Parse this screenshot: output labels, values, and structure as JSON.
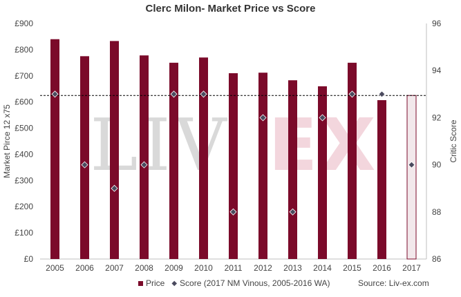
{
  "chart_data": {
    "type": "bar",
    "title": "Clerc Milon- Market Price vs Score",
    "categories": [
      "2005",
      "2006",
      "2007",
      "2008",
      "2009",
      "2010",
      "2011",
      "2012",
      "2013",
      "2014",
      "2015",
      "2016",
      "2017"
    ],
    "series": [
      {
        "name": "Price",
        "kind": "bar",
        "axis": "left",
        "color": "#7b0a2a",
        "values": [
          840,
          775,
          833,
          778,
          750,
          770,
          710,
          712,
          683,
          660,
          750,
          607,
          625
        ],
        "hollow_last": true
      },
      {
        "name": "Score (2017 NM Vinous, 2005-2016 WA)",
        "kind": "scatter",
        "axis": "right",
        "color": "#4a4a5e",
        "values": [
          93,
          90,
          89,
          90,
          93,
          93,
          88,
          92,
          88,
          92,
          93,
          93,
          90
        ]
      }
    ],
    "reference_line": {
      "value": 625,
      "axis": "left",
      "style": "dashed"
    },
    "ylabel": "Market Pirce 12 x75",
    "y2label": "Critic Score",
    "ylim": [
      0,
      900
    ],
    "y_ticks": [
      "£0",
      "£100",
      "£200",
      "£300",
      "£400",
      "£500",
      "£600",
      "£700",
      "£800",
      "£900"
    ],
    "y2lim": [
      86,
      96
    ],
    "y2_ticks": [
      "86",
      "88",
      "90",
      "92",
      "94",
      "96"
    ],
    "grid": false,
    "legend_position": "bottom",
    "source": "Source: Liv-ex.com",
    "watermark": "LIV-EX"
  }
}
